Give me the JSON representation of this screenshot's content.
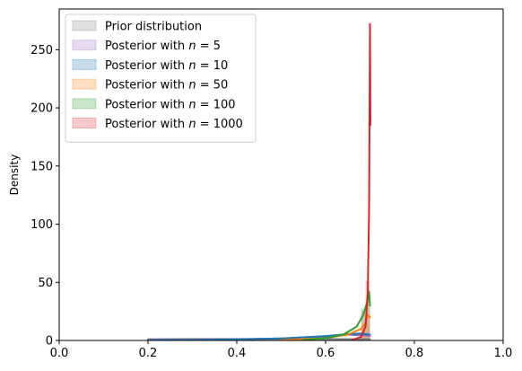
{
  "chart_data": {
    "type": "histogram+kde",
    "xlabel": "",
    "ylabel": "Density",
    "xlim": [
      0.0,
      1.0
    ],
    "ylim": [
      0,
      285
    ],
    "xticks": [
      "0.0",
      "0.2",
      "0.4",
      "0.6",
      "0.8",
      "1.0"
    ],
    "yticks": [
      "0",
      "50",
      "100",
      "150",
      "200",
      "250"
    ],
    "legend_position": "top-left",
    "series": [
      {
        "name": "Prior distribution",
        "color": "#7f7f7f",
        "kde": [
          [
            0.2,
            1.1
          ],
          [
            0.3,
            1.2
          ],
          [
            0.4,
            1.25
          ],
          [
            0.5,
            1.25
          ],
          [
            0.6,
            1.2
          ],
          [
            0.7,
            1.1
          ]
        ],
        "bins": []
      },
      {
        "name": "Posterior with $n=5$",
        "color": "#9467bd",
        "kde": [
          [
            0.2,
            0.4
          ],
          [
            0.3,
            0.7
          ],
          [
            0.4,
            1.1
          ],
          [
            0.5,
            1.8
          ],
          [
            0.6,
            3.2
          ],
          [
            0.65,
            5.0
          ],
          [
            0.7,
            4.0
          ]
        ],
        "bins": []
      },
      {
        "name": "Posterior with $n=10$",
        "color": "#1f77b4",
        "kde": [
          [
            0.2,
            0.2
          ],
          [
            0.3,
            0.4
          ],
          [
            0.4,
            0.9
          ],
          [
            0.5,
            1.8
          ],
          [
            0.6,
            3.8
          ],
          [
            0.65,
            5.5
          ],
          [
            0.68,
            6.0
          ],
          [
            0.7,
            5.0
          ]
        ],
        "bins": []
      },
      {
        "name": "Posterior with $n=50$",
        "color": "#ff7f0e",
        "kde": [
          [
            0.5,
            0.3
          ],
          [
            0.6,
            2.0
          ],
          [
            0.65,
            5.0
          ],
          [
            0.68,
            10.0
          ],
          [
            0.69,
            15.0
          ],
          [
            0.695,
            22.0
          ],
          [
            0.7,
            20.0
          ]
        ],
        "bins": [
          [
            0.68,
            0.69,
            12
          ],
          [
            0.69,
            0.7,
            20
          ]
        ]
      },
      {
        "name": "Posterior with $n=100$",
        "color": "#2ca02c",
        "kde": [
          [
            0.55,
            0.5
          ],
          [
            0.6,
            2.0
          ],
          [
            0.64,
            5.0
          ],
          [
            0.67,
            12.0
          ],
          [
            0.685,
            22.0
          ],
          [
            0.695,
            35.0
          ],
          [
            0.698,
            42.0
          ],
          [
            0.7,
            30.0
          ]
        ],
        "bins": [
          [
            0.68,
            0.69,
            28
          ],
          [
            0.69,
            0.7,
            36
          ]
        ]
      },
      {
        "name": "Posterior with $n=1000$",
        "color": "#d62728",
        "kde": [
          [
            0.66,
            0.5
          ],
          [
            0.68,
            3.0
          ],
          [
            0.69,
            12.0
          ],
          [
            0.695,
            40.0
          ],
          [
            0.698,
            110.0
          ],
          [
            0.7,
            272.0
          ],
          [
            0.701,
            185.0
          ]
        ],
        "bins": [
          [
            0.68,
            0.69,
            26
          ],
          [
            0.69,
            0.7,
            51
          ]
        ]
      }
    ]
  }
}
